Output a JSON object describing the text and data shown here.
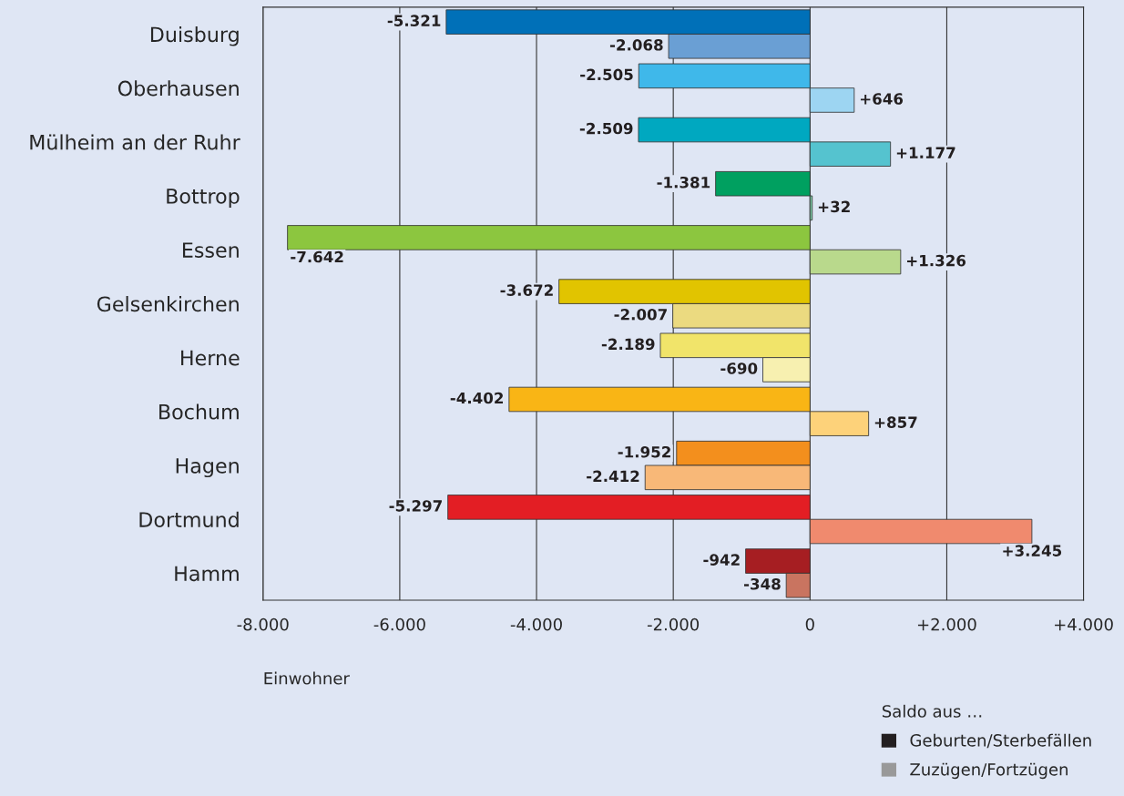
{
  "chart_data": {
    "type": "bar",
    "orientation": "horizontal",
    "xlabel": "Einwohner",
    "legend_title": "Saldo aus …",
    "legend": "bottom right",
    "grid": "x",
    "categories": [
      "Duisburg",
      "Oberhausen",
      "Mülheim an der Ruhr",
      "Bottrop",
      "Essen",
      "Gelsenkirchen",
      "Herne",
      "Bochum",
      "Hagen",
      "Dortmund",
      "Hamm"
    ],
    "series": [
      {
        "name": "Geburten/Sterbefällen",
        "color": "#231f20",
        "values": [
          -5321,
          -2505,
          -2509,
          -1381,
          -7642,
          -3672,
          -2189,
          -4402,
          -1952,
          -5297,
          -942
        ],
        "value_labels": [
          "-5.321",
          "-2.505",
          "-2.509",
          "-1.381",
          "-7.642",
          "-3.672",
          "-2.189",
          "-4.402",
          "-1.952",
          "-5.297",
          "-942"
        ],
        "colors": [
          "#0070b8",
          "#3fb8ea",
          "#00a8c0",
          "#00a060",
          "#8cc63f",
          "#e1c400",
          "#f1e46a",
          "#f9b515",
          "#f38f1d",
          "#e31e24",
          "#a61e22"
        ]
      },
      {
        "name": "Zuzügen/Fortzügen",
        "color": "#999999",
        "values": [
          -2068,
          646,
          1177,
          32,
          1326,
          -2007,
          -690,
          857,
          -2412,
          3245,
          -348
        ],
        "value_labels": [
          "-2.068",
          "+646",
          "+1.177",
          "+32",
          "+1.326",
          "-2.007",
          "-690",
          "+857",
          "-2.412",
          "+3.245",
          "-348"
        ],
        "colors": [
          "#6a9fd4",
          "#9dd5f2",
          "#55c3cf",
          "#7fcfa8",
          "#b9d98c",
          "#ebda80",
          "#f7f0b0",
          "#fdd27a",
          "#f8b878",
          "#f08a6e",
          "#c97460"
        ]
      }
    ],
    "xlim": [
      -8000,
      4000
    ],
    "xticks": [
      {
        "value": -8000,
        "label": "-8.000"
      },
      {
        "value": -6000,
        "label": "-6.000"
      },
      {
        "value": -4000,
        "label": "-4.000"
      },
      {
        "value": -2000,
        "label": "-2.000"
      },
      0,
      {
        "value": 2000,
        "label": "+2.000"
      },
      {
        "value": 4000,
        "label": "+4.000"
      }
    ]
  }
}
